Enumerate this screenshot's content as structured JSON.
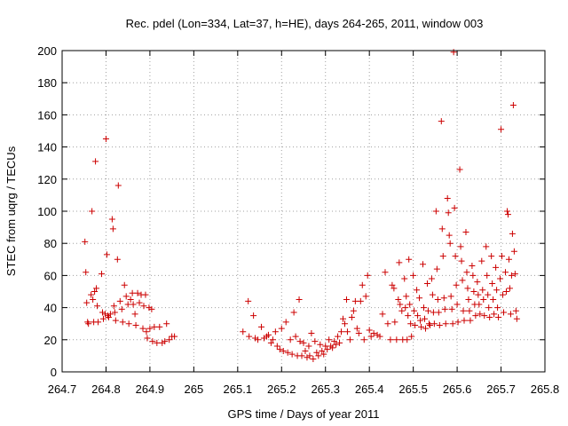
{
  "chart_data": {
    "type": "scatter",
    "title": "Rec. pdel (Lon=334, Lat=37, h=HE), days 264-265, 2011, window 003",
    "xlabel": "GPS time / Days of year 2011",
    "ylabel": "STEC from uqrg / TECUs",
    "xlim": [
      264.7,
      265.8
    ],
    "ylim": [
      0,
      200
    ],
    "xticks": [
      264.7,
      264.8,
      264.9,
      265,
      265.1,
      265.2,
      265.3,
      265.4,
      265.5,
      265.6,
      265.7,
      265.8
    ],
    "xtick_labels": [
      "264.7",
      "264.8",
      "264.9",
      "265",
      "265.1",
      "265.2",
      "265.3",
      "265.4",
      "265.5",
      "265.6",
      "265.7",
      "265.8"
    ],
    "yticks": [
      0,
      20,
      40,
      60,
      80,
      100,
      120,
      140,
      160,
      180,
      200
    ],
    "ytick_labels": [
      "0",
      "20",
      "40",
      "60",
      "80",
      "100",
      "120",
      "140",
      "160",
      "180",
      "200"
    ],
    "grid": true,
    "marker": "+",
    "color": "#cc0000",
    "series": [
      {
        "name": "STEC",
        "points": [
          [
            264.752,
            81
          ],
          [
            264.754,
            62
          ],
          [
            264.756,
            43
          ],
          [
            264.758,
            31
          ],
          [
            264.76,
            30
          ],
          [
            264.766,
            48
          ],
          [
            264.768,
            100
          ],
          [
            264.77,
            45
          ],
          [
            264.772,
            31
          ],
          [
            264.774,
            50
          ],
          [
            264.776,
            131
          ],
          [
            264.778,
            52
          ],
          [
            264.78,
            41
          ],
          [
            264.782,
            31
          ],
          [
            264.79,
            61
          ],
          [
            264.792,
            37
          ],
          [
            264.794,
            33
          ],
          [
            264.798,
            36
          ],
          [
            264.8,
            145
          ],
          [
            264.802,
            73
          ],
          [
            264.804,
            35
          ],
          [
            264.806,
            34
          ],
          [
            264.81,
            36
          ],
          [
            264.814,
            95
          ],
          [
            264.816,
            89
          ],
          [
            264.818,
            41
          ],
          [
            264.82,
            37
          ],
          [
            264.822,
            32
          ],
          [
            264.826,
            70
          ],
          [
            264.828,
            116
          ],
          [
            264.832,
            44
          ],
          [
            264.836,
            39
          ],
          [
            264.838,
            31
          ],
          [
            264.842,
            54
          ],
          [
            264.846,
            47
          ],
          [
            264.85,
            42
          ],
          [
            264.852,
            30
          ],
          [
            264.856,
            45
          ],
          [
            264.86,
            49
          ],
          [
            264.862,
            42
          ],
          [
            264.866,
            36
          ],
          [
            264.868,
            29
          ],
          [
            264.872,
            49
          ],
          [
            264.876,
            43
          ],
          [
            264.88,
            48
          ],
          [
            264.884,
            27
          ],
          [
            264.886,
            41
          ],
          [
            264.89,
            48
          ],
          [
            264.892,
            25
          ],
          [
            264.894,
            21
          ],
          [
            264.898,
            40
          ],
          [
            264.9,
            27
          ],
          [
            264.904,
            39
          ],
          [
            264.906,
            19
          ],
          [
            264.91,
            28
          ],
          [
            264.916,
            18
          ],
          [
            264.922,
            28
          ],
          [
            264.928,
            18
          ],
          [
            264.934,
            19
          ],
          [
            264.938,
            30
          ],
          [
            264.944,
            20
          ],
          [
            264.95,
            22
          ],
          [
            264.956,
            22
          ],
          [
            265.112,
            25
          ],
          [
            265.124,
            44
          ],
          [
            265.126,
            22
          ],
          [
            265.136,
            35
          ],
          [
            265.14,
            21
          ],
          [
            265.146,
            20
          ],
          [
            265.154,
            28
          ],
          [
            265.16,
            21
          ],
          [
            265.166,
            22
          ],
          [
            265.17,
            23
          ],
          [
            265.176,
            18
          ],
          [
            265.18,
            20
          ],
          [
            265.186,
            25
          ],
          [
            265.19,
            16
          ],
          [
            265.196,
            14
          ],
          [
            265.2,
            27
          ],
          [
            265.204,
            13
          ],
          [
            265.21,
            31
          ],
          [
            265.214,
            12
          ],
          [
            265.22,
            20
          ],
          [
            265.224,
            11
          ],
          [
            265.228,
            37
          ],
          [
            265.232,
            22
          ],
          [
            265.236,
            10
          ],
          [
            265.24,
            45
          ],
          [
            265.242,
            19
          ],
          [
            265.246,
            10
          ],
          [
            265.25,
            18
          ],
          [
            265.254,
            13
          ],
          [
            265.258,
            9
          ],
          [
            265.262,
            16
          ],
          [
            265.264,
            10
          ],
          [
            265.268,
            24
          ],
          [
            265.272,
            8
          ],
          [
            265.276,
            19
          ],
          [
            265.28,
            12
          ],
          [
            265.284,
            10
          ],
          [
            265.288,
            17
          ],
          [
            265.292,
            13
          ],
          [
            265.296,
            11
          ],
          [
            265.3,
            16
          ],
          [
            265.304,
            14
          ],
          [
            265.308,
            20
          ],
          [
            265.312,
            16
          ],
          [
            265.316,
            15
          ],
          [
            265.32,
            19
          ],
          [
            265.324,
            17
          ],
          [
            265.328,
            22
          ],
          [
            265.332,
            18
          ],
          [
            265.336,
            25
          ],
          [
            265.34,
            33
          ],
          [
            265.344,
            30
          ],
          [
            265.348,
            45
          ],
          [
            265.35,
            25
          ],
          [
            265.356,
            20
          ],
          [
            265.36,
            34
          ],
          [
            265.364,
            38
          ],
          [
            265.368,
            44
          ],
          [
            265.372,
            27
          ],
          [
            265.376,
            24
          ],
          [
            265.38,
            44
          ],
          [
            265.384,
            54
          ],
          [
            265.388,
            20
          ],
          [
            265.392,
            47
          ],
          [
            265.396,
            60
          ],
          [
            265.4,
            26
          ],
          [
            265.404,
            22
          ],
          [
            265.41,
            24
          ],
          [
            265.418,
            23
          ],
          [
            265.424,
            22
          ],
          [
            265.43,
            36
          ],
          [
            265.436,
            62
          ],
          [
            265.442,
            30
          ],
          [
            265.448,
            20
          ],
          [
            265.452,
            54
          ],
          [
            265.456,
            52
          ],
          [
            265.458,
            31
          ],
          [
            265.462,
            20
          ],
          [
            265.466,
            45
          ],
          [
            265.468,
            68
          ],
          [
            265.47,
            42
          ],
          [
            265.474,
            38
          ],
          [
            265.476,
            20
          ],
          [
            265.48,
            58
          ],
          [
            265.482,
            40
          ],
          [
            265.484,
            47
          ],
          [
            265.486,
            20
          ],
          [
            265.488,
            35
          ],
          [
            265.49,
            70
          ],
          [
            265.492,
            42
          ],
          [
            265.494,
            30
          ],
          [
            265.496,
            22
          ],
          [
            265.5,
            60
          ],
          [
            265.502,
            38
          ],
          [
            265.504,
            29
          ],
          [
            265.508,
            51
          ],
          [
            265.51,
            35
          ],
          [
            265.514,
            46
          ],
          [
            265.516,
            32
          ],
          [
            265.518,
            28
          ],
          [
            265.522,
            67
          ],
          [
            265.524,
            40
          ],
          [
            265.526,
            33
          ],
          [
            265.528,
            27
          ],
          [
            265.532,
            55
          ],
          [
            265.534,
            38
          ],
          [
            265.536,
            30
          ],
          [
            265.538,
            29
          ],
          [
            265.542,
            58
          ],
          [
            265.544,
            48
          ],
          [
            265.546,
            37
          ],
          [
            265.548,
            30
          ],
          [
            265.552,
            100
          ],
          [
            265.554,
            64
          ],
          [
            265.556,
            45
          ],
          [
            265.558,
            37
          ],
          [
            265.56,
            29
          ],
          [
            265.564,
            156
          ],
          [
            265.566,
            89
          ],
          [
            265.568,
            72
          ],
          [
            265.57,
            46
          ],
          [
            265.572,
            39
          ],
          [
            265.574,
            30
          ],
          [
            265.578,
            108
          ],
          [
            265.58,
            99
          ],
          [
            265.582,
            85
          ],
          [
            265.584,
            80
          ],
          [
            265.586,
            47
          ],
          [
            265.588,
            39
          ],
          [
            265.59,
            30
          ],
          [
            265.592,
            199
          ],
          [
            265.594,
            102
          ],
          [
            265.596,
            72
          ],
          [
            265.598,
            54
          ],
          [
            265.6,
            42
          ],
          [
            265.602,
            31
          ],
          [
            265.606,
            126
          ],
          [
            265.608,
            78
          ],
          [
            265.61,
            69
          ],
          [
            265.612,
            57
          ],
          [
            265.614,
            38
          ],
          [
            265.616,
            32
          ],
          [
            265.62,
            87
          ],
          [
            265.622,
            62
          ],
          [
            265.624,
            52
          ],
          [
            265.626,
            45
          ],
          [
            265.628,
            38
          ],
          [
            265.63,
            32
          ],
          [
            265.634,
            66
          ],
          [
            265.636,
            60
          ],
          [
            265.638,
            50
          ],
          [
            265.64,
            42
          ],
          [
            265.642,
            35
          ],
          [
            265.646,
            56
          ],
          [
            265.648,
            48
          ],
          [
            265.65,
            42
          ],
          [
            265.652,
            36
          ],
          [
            265.656,
            69
          ],
          [
            265.658,
            51
          ],
          [
            265.66,
            45
          ],
          [
            265.662,
            35
          ],
          [
            265.666,
            78
          ],
          [
            265.668,
            60
          ],
          [
            265.67,
            48
          ],
          [
            265.672,
            40
          ],
          [
            265.674,
            34
          ],
          [
            265.678,
            72
          ],
          [
            265.68,
            55
          ],
          [
            265.682,
            45
          ],
          [
            265.684,
            36
          ],
          [
            265.688,
            65
          ],
          [
            265.69,
            51
          ],
          [
            265.692,
            40
          ],
          [
            265.694,
            34
          ],
          [
            265.698,
            58
          ],
          [
            265.7,
            151
          ],
          [
            265.702,
            72
          ],
          [
            265.704,
            48
          ],
          [
            265.706,
            37
          ],
          [
            265.71,
            62
          ],
          [
            265.712,
            50
          ],
          [
            265.714,
            100
          ],
          [
            265.716,
            98
          ],
          [
            265.718,
            70
          ],
          [
            265.72,
            52
          ],
          [
            265.722,
            36
          ],
          [
            265.724,
            60
          ],
          [
            265.726,
            86
          ],
          [
            265.728,
            166
          ],
          [
            265.73,
            75
          ],
          [
            265.732,
            61
          ],
          [
            265.734,
            38
          ],
          [
            265.736,
            33
          ]
        ]
      }
    ]
  }
}
